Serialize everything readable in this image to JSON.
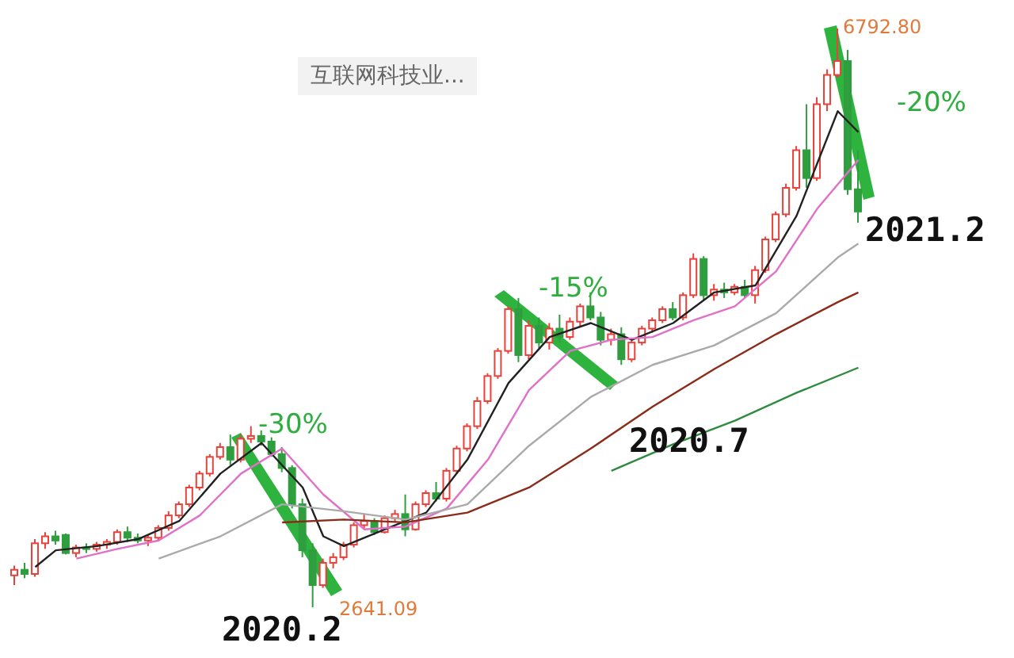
{
  "chart_data": {
    "type": "candlestick",
    "title": "互联网科技业...",
    "categories": [
      null,
      null,
      null,
      null,
      null,
      null,
      null,
      null,
      null,
      null,
      null,
      null,
      null,
      null,
      null,
      null,
      null,
      null,
      null,
      null,
      null,
      null,
      null,
      null,
      null,
      null,
      null,
      null,
      null,
      null,
      null,
      null,
      null,
      null,
      null,
      null,
      null,
      null,
      null,
      null,
      null,
      null,
      null,
      null,
      null,
      null,
      null,
      null,
      null,
      null,
      null,
      null,
      null,
      null,
      null,
      null,
      null,
      null,
      null,
      null,
      null,
      null,
      null,
      null,
      null,
      null,
      null,
      null,
      null,
      null,
      null,
      null,
      null,
      null,
      null,
      null,
      null,
      null,
      null,
      null,
      null,
      null,
      null
    ],
    "ohlc": [
      [
        2870,
        2940,
        2800,
        2910
      ],
      [
        2910,
        2960,
        2850,
        2880
      ],
      [
        2880,
        3130,
        2860,
        3100
      ],
      [
        3100,
        3180,
        3060,
        3150
      ],
      [
        3150,
        3190,
        3090,
        3120
      ],
      [
        3160,
        3170,
        3020,
        3030
      ],
      [
        3030,
        3090,
        3000,
        3070
      ],
      [
        3070,
        3100,
        3030,
        3060
      ],
      [
        3060,
        3110,
        3040,
        3090
      ],
      [
        3090,
        3130,
        3060,
        3110
      ],
      [
        3110,
        3200,
        3090,
        3180
      ],
      [
        3180,
        3220,
        3110,
        3140
      ],
      [
        3140,
        3170,
        3100,
        3120
      ],
      [
        3120,
        3160,
        3080,
        3140
      ],
      [
        3140,
        3230,
        3120,
        3210
      ],
      [
        3210,
        3330,
        3190,
        3300
      ],
      [
        3300,
        3400,
        3280,
        3380
      ],
      [
        3380,
        3520,
        3360,
        3500
      ],
      [
        3500,
        3620,
        3480,
        3600
      ],
      [
        3600,
        3740,
        3580,
        3720
      ],
      [
        3720,
        3820,
        3700,
        3790
      ],
      [
        3790,
        3880,
        3660,
        3700
      ],
      [
        3700,
        3880,
        3680,
        3850
      ],
      [
        3850,
        3940,
        3820,
        3870
      ],
      [
        3870,
        3910,
        3800,
        3830
      ],
      [
        3830,
        3860,
        3720,
        3740
      ],
      [
        3740,
        3790,
        3610,
        3640
      ],
      [
        3640,
        3660,
        3350,
        3380
      ],
      [
        3380,
        3420,
        3000,
        3050
      ],
      [
        3050,
        3100,
        2641.09,
        2800
      ],
      [
        2800,
        2990,
        2780,
        2960
      ],
      [
        2960,
        3030,
        2920,
        3000
      ],
      [
        3000,
        3110,
        2980,
        3090
      ],
      [
        3090,
        3250,
        3070,
        3230
      ],
      [
        3230,
        3310,
        3200,
        3260
      ],
      [
        3260,
        3280,
        3160,
        3180
      ],
      [
        3180,
        3300,
        3170,
        3280
      ],
      [
        3280,
        3340,
        3250,
        3310
      ],
      [
        3310,
        3450,
        3150,
        3200
      ],
      [
        3200,
        3400,
        3190,
        3380
      ],
      [
        3380,
        3480,
        3360,
        3460
      ],
      [
        3460,
        3540,
        3400,
        3420
      ],
      [
        3420,
        3640,
        3400,
        3620
      ],
      [
        3620,
        3800,
        3600,
        3780
      ],
      [
        3780,
        3960,
        3760,
        3940
      ],
      [
        3940,
        4150,
        3920,
        4120
      ],
      [
        4120,
        4320,
        4100,
        4300
      ],
      [
        4300,
        4500,
        4280,
        4480
      ],
      [
        4480,
        4800,
        4460,
        4780
      ],
      [
        4780,
        4860,
        4400,
        4450
      ],
      [
        4450,
        4700,
        4420,
        4660
      ],
      [
        4660,
        4720,
        4500,
        4540
      ],
      [
        4540,
        4680,
        4490,
        4640
      ],
      [
        4640,
        4740,
        4540,
        4580
      ],
      [
        4580,
        4720,
        4560,
        4690
      ],
      [
        4690,
        4820,
        4660,
        4800
      ],
      [
        4800,
        4900,
        4700,
        4720
      ],
      [
        4720,
        4760,
        4520,
        4560
      ],
      [
        4560,
        4640,
        4520,
        4600
      ],
      [
        4600,
        4650,
        4380,
        4420
      ],
      [
        4420,
        4560,
        4400,
        4540
      ],
      [
        4540,
        4660,
        4520,
        4640
      ],
      [
        4640,
        4720,
        4610,
        4700
      ],
      [
        4700,
        4800,
        4680,
        4780
      ],
      [
        4780,
        4830,
        4700,
        4720
      ],
      [
        4720,
        4900,
        4700,
        4880
      ],
      [
        4880,
        5180,
        4860,
        5140
      ],
      [
        5140,
        5160,
        4840,
        4880
      ],
      [
        4880,
        4960,
        4840,
        4920
      ],
      [
        4920,
        4970,
        4860,
        4900
      ],
      [
        4900,
        4960,
        4880,
        4940
      ],
      [
        4940,
        4990,
        4860,
        4880
      ],
      [
        4880,
        5090,
        4820,
        5060
      ],
      [
        5060,
        5300,
        5040,
        5280
      ],
      [
        5280,
        5480,
        5260,
        5460
      ],
      [
        5460,
        5680,
        5440,
        5650
      ],
      [
        5650,
        5950,
        5630,
        5920
      ],
      [
        5920,
        6250,
        5650,
        5720
      ],
      [
        5720,
        6300,
        5700,
        6250
      ],
      [
        6250,
        6500,
        6200,
        6460
      ],
      [
        6460,
        6792.8,
        6440,
        6560
      ],
      [
        6560,
        6640,
        5600,
        5640
      ],
      [
        5640,
        5920,
        5400,
        5480
      ]
    ],
    "colors": [
      "#e8413a",
      "#2e9e3e",
      "#e8413a",
      "#e8413a",
      "#2e9e3e",
      "#2e9e3e",
      "#e8413a",
      "#2e9e3e",
      "#e8413a",
      "#e8413a",
      "#e8413a",
      "#2e9e3e",
      "#2e9e3e",
      "#e8413a",
      "#e8413a",
      "#e8413a",
      "#e8413a",
      "#e8413a",
      "#e8413a",
      "#e8413a",
      "#e8413a",
      "#2e9e3e",
      "#e8413a",
      "#e8413a",
      "#2e9e3e",
      "#2e9e3e",
      "#2e9e3e",
      "#2e9e3e",
      "#2e9e3e",
      "#2e9e3e",
      "#e8413a",
      "#e8413a",
      "#e8413a",
      "#e8413a",
      "#e8413a",
      "#2e9e3e",
      "#e8413a",
      "#e8413a",
      "#2e9e3e",
      "#e8413a",
      "#e8413a",
      "#2e9e3e",
      "#e8413a",
      "#e8413a",
      "#e8413a",
      "#e8413a",
      "#e8413a",
      "#e8413a",
      "#e8413a",
      "#2e9e3e",
      "#e8413a",
      "#2e9e3e",
      "#e8413a",
      "#2e9e3e",
      "#e8413a",
      "#e8413a",
      "#2e9e3e",
      "#2e9e3e",
      "#e8413a",
      "#2e9e3e",
      "#e8413a",
      "#e8413a",
      "#e8413a",
      "#e8413a",
      "#2e9e3e",
      "#e8413a",
      "#e8413a",
      "#2e9e3e",
      "#e8413a",
      "#2e9e3e",
      "#e8413a",
      "#2e9e3e",
      "#e8413a",
      "#e8413a",
      "#e8413a",
      "#e8413a",
      "#e8413a",
      "#2e9e3e",
      "#e8413a",
      "#e8413a",
      "#e8413a",
      "#2e9e3e",
      "#2e9e3e"
    ],
    "series": [
      {
        "type": "line",
        "color": "#222222",
        "values": [
          null,
          null,
          2930,
          null,
          3050,
          null,
          null,
          null,
          3080,
          null,
          null,
          null,
          3130,
          null,
          null,
          null,
          3260,
          null,
          null,
          null,
          3600,
          null,
          null,
          null,
          3820,
          null,
          null,
          null,
          3500,
          null,
          3150,
          null,
          3080,
          null,
          null,
          null,
          3200,
          null,
          null,
          null,
          3320,
          null,
          null,
          null,
          3700,
          null,
          null,
          null,
          4250,
          null,
          null,
          null,
          4580,
          null,
          null,
          null,
          4680,
          null,
          null,
          null,
          4560,
          null,
          null,
          null,
          4680,
          null,
          null,
          null,
          4900,
          null,
          null,
          null,
          4950,
          null,
          null,
          null,
          5450,
          null,
          null,
          null,
          6200,
          null,
          6050
        ]
      },
      {
        "type": "line",
        "color": "#e070c8",
        "values": [
          null,
          null,
          null,
          null,
          null,
          null,
          2990,
          null,
          null,
          null,
          3060,
          null,
          null,
          null,
          3120,
          null,
          null,
          null,
          3300,
          null,
          null,
          null,
          3600,
          null,
          null,
          null,
          3780,
          null,
          null,
          null,
          3450,
          null,
          null,
          null,
          3200,
          null,
          null,
          null,
          3220,
          null,
          null,
          null,
          3350,
          null,
          null,
          null,
          3700,
          null,
          null,
          null,
          4200,
          null,
          null,
          null,
          4480,
          null,
          null,
          null,
          4560,
          null,
          null,
          null,
          4580,
          null,
          null,
          null,
          4700,
          null,
          null,
          null,
          4800,
          null,
          null,
          null,
          5050,
          null,
          null,
          null,
          5500,
          null,
          null,
          null,
          5850
        ]
      },
      {
        "type": "line",
        "color": "#aaaaaa",
        "values": [
          null,
          null,
          null,
          null,
          null,
          null,
          null,
          null,
          null,
          null,
          null,
          null,
          null,
          null,
          2990,
          null,
          null,
          null,
          null,
          null,
          3150,
          null,
          null,
          null,
          null,
          null,
          3380,
          null,
          null,
          null,
          null,
          null,
          3330,
          null,
          null,
          null,
          null,
          null,
          3270,
          null,
          null,
          null,
          null,
          null,
          3380,
          null,
          null,
          null,
          null,
          null,
          3800,
          null,
          null,
          null,
          null,
          null,
          4150,
          null,
          null,
          null,
          null,
          null,
          4380,
          null,
          null,
          null,
          null,
          null,
          4520,
          null,
          null,
          null,
          null,
          null,
          4750,
          null,
          null,
          null,
          null,
          null,
          5150,
          null,
          5250
        ]
      },
      {
        "type": "line",
        "color": "#8b2b1a",
        "values": [
          null,
          null,
          null,
          null,
          null,
          null,
          null,
          null,
          null,
          null,
          null,
          null,
          null,
          null,
          null,
          null,
          null,
          null,
          null,
          null,
          null,
          null,
          null,
          null,
          null,
          null,
          3250,
          null,
          null,
          null,
          null,
          null,
          3270,
          null,
          null,
          null,
          null,
          null,
          3250,
          null,
          null,
          null,
          null,
          null,
          3320,
          null,
          null,
          null,
          null,
          null,
          3500,
          null,
          null,
          null,
          null,
          null,
          3780,
          null,
          null,
          null,
          null,
          null,
          4080,
          null,
          null,
          null,
          null,
          null,
          4350,
          null,
          null,
          null,
          null,
          null,
          4600,
          null,
          null,
          null,
          null,
          null,
          4830,
          null,
          4900
        ]
      },
      {
        "type": "line",
        "color": "#2e8b3e",
        "values": [
          null,
          null,
          null,
          null,
          null,
          null,
          null,
          null,
          null,
          null,
          null,
          null,
          null,
          null,
          null,
          null,
          null,
          null,
          null,
          null,
          null,
          null,
          null,
          null,
          null,
          null,
          null,
          null,
          null,
          null,
          null,
          null,
          null,
          null,
          null,
          null,
          null,
          null,
          null,
          null,
          null,
          null,
          null,
          null,
          null,
          null,
          null,
          null,
          null,
          null,
          null,
          null,
          null,
          null,
          null,
          null,
          null,
          null,
          3620,
          null,
          null,
          null,
          null,
          null,
          3810,
          null,
          null,
          null,
          null,
          null,
          3980,
          null,
          null,
          null,
          null,
          null,
          4180,
          null,
          null,
          null,
          null,
          null,
          4360
        ]
      }
    ],
    "annotations": [
      "6792.80",
      "2641.09",
      "-30%",
      "-15%",
      "-20%",
      "2020.2",
      "2020.7",
      "2021.2"
    ],
    "tick_labels": false,
    "legend": false
  }
}
